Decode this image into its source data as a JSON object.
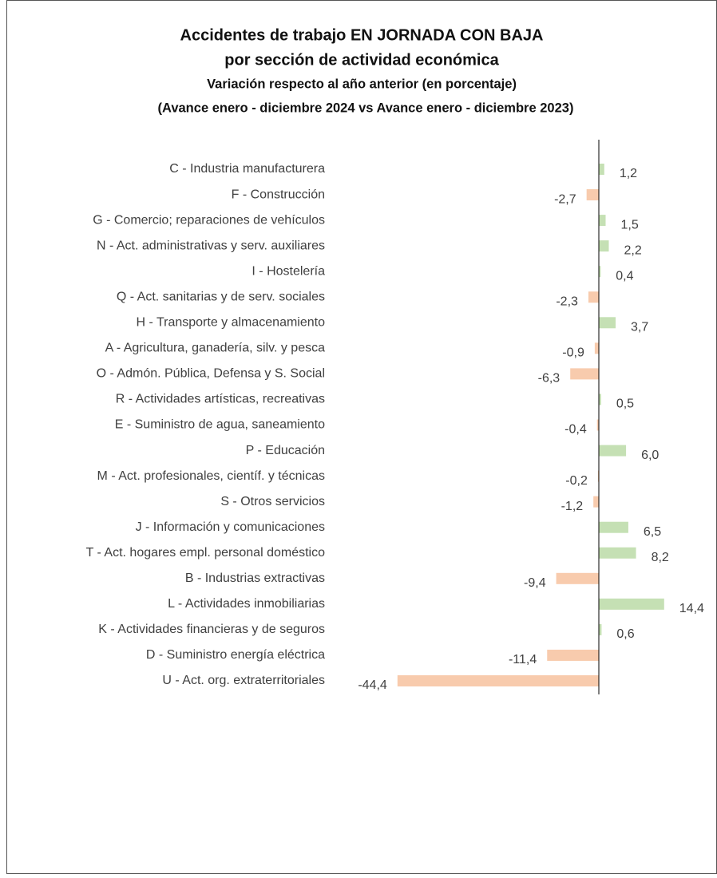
{
  "chart_data": {
    "type": "bar",
    "orientation": "horizontal",
    "title": "Accidentes de trabajo EN JORNADA CON BAJA",
    "title_line2": "por sección de actividad económica",
    "subtitle": "Variación  respecto al año anterior (en porcentaje)",
    "subtitle_line2": "(Avance enero - diciembre 2024 vs Avance enero - diciembre 2023)",
    "categories": [
      "C - Industria manufacturera",
      "F - Construcción",
      "G - Comercio; reparaciones de vehículos",
      "N - Act. administrativas y serv. auxiliares",
      "I - Hostelería",
      "Q - Act. sanitarias y de serv. sociales",
      "H - Transporte y almacenamiento",
      "A - Agricultura, ganadería, silv. y pesca",
      "O - Admón. Pública, Defensa y S. Social",
      "R - Actividades artísticas, recreativas",
      "E - Suministro de agua, saneamiento",
      "P - Educación",
      "M - Act. profesionales, científ. y técnicas",
      "S - Otros servicios",
      "J - Información y comunicaciones",
      "T - Act. hogares empl. personal doméstico",
      "B - Industrias extractivas",
      "L - Actividades inmobiliarias",
      "K - Actividades financieras y de seguros",
      "D - Suministro energía eléctrica",
      "U - Act. org. extraterritoriales"
    ],
    "values": [
      1.2,
      -2.7,
      1.5,
      2.2,
      0.4,
      -2.3,
      3.7,
      -0.9,
      -6.3,
      0.5,
      -0.4,
      6.0,
      -0.2,
      -1.2,
      6.5,
      8.2,
      -9.4,
      14.4,
      0.6,
      -11.4,
      -44.4
    ],
    "value_labels": [
      "1,2",
      "-2,7",
      "1,5",
      "2,2",
      "0,4",
      "-2,3",
      "3,7",
      "-0,9",
      "-6,3",
      "0,5",
      "-0,4",
      "6,0",
      "-0,2",
      "-1,2",
      "6,5",
      "8,2",
      "-9,4",
      "14,4",
      "0,6",
      "-11,4",
      "-44,4"
    ],
    "colors": {
      "positive": "#c5e0b4",
      "negative": "#f8cbad"
    },
    "xlim": [
      -45,
      15
    ]
  }
}
